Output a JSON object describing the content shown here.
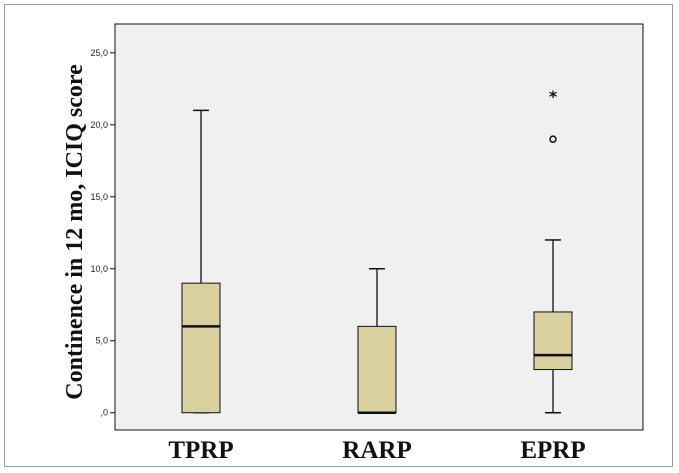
{
  "chart_data": {
    "type": "boxplot",
    "ylabel": "Continence in 12 mo, ICIQ score",
    "xlabel": "",
    "ylim": [
      -1.2,
      27
    ],
    "yticks": [
      0,
      5,
      10,
      15,
      20,
      25
    ],
    "ytick_labels": [
      ",0",
      "5,0",
      "10,0",
      "15,0",
      "20,0",
      "25,0"
    ],
    "grid": false,
    "colors": {
      "box_fill": "#d9d0a0",
      "plot_bg": "#f0f0f0",
      "line": "#111111"
    },
    "categories": [
      "TPRP",
      "RARP",
      "EPRP"
    ],
    "boxes": [
      {
        "name": "TPRP",
        "whisker_low": 0,
        "q1": 0,
        "median": 6,
        "q3": 9,
        "whisker_high": 21,
        "outliers": [],
        "extremes": []
      },
      {
        "name": "RARP",
        "whisker_low": 0,
        "q1": 0,
        "median": 0,
        "q3": 6,
        "whisker_high": 10,
        "outliers": [],
        "extremes": []
      },
      {
        "name": "EPRP",
        "whisker_low": 0,
        "q1": 3,
        "median": 4,
        "q3": 7,
        "whisker_high": 12,
        "outliers": [
          19
        ],
        "extremes": [
          22
        ]
      }
    ]
  }
}
